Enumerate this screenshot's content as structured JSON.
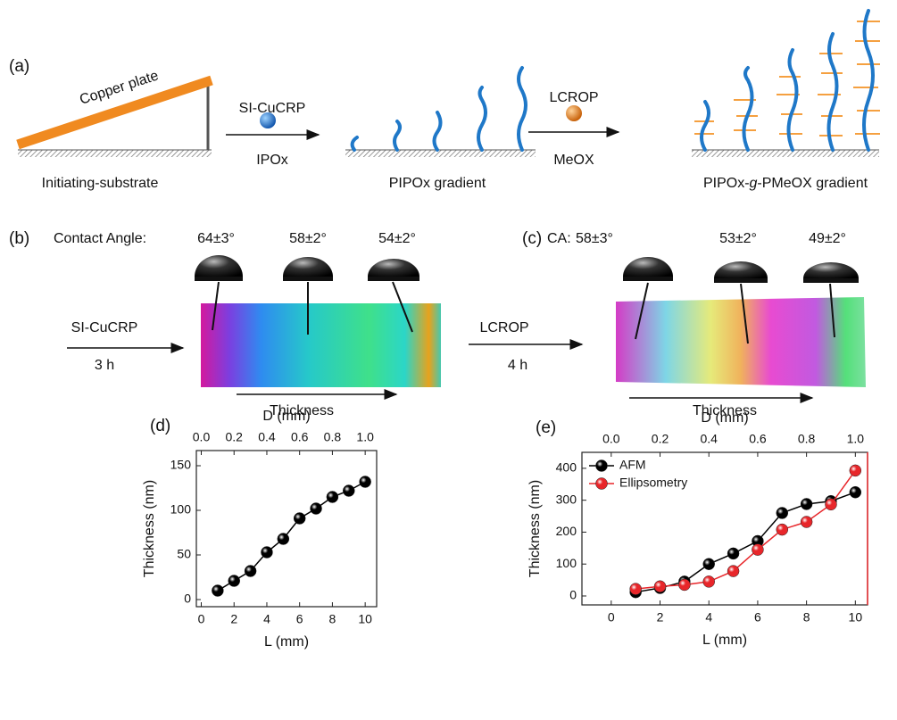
{
  "panel_a": {
    "label": "(a)",
    "plate": "Copper plate",
    "step1": {
      "reagent": "SI-CuCRP",
      "monomer": "IPOx"
    },
    "step2": {
      "reagent": "LCROP",
      "monomer": "MeOX"
    },
    "caption1": "Initiating-substrate",
    "caption2": "PIPOx gradient",
    "caption3": {
      "pre": "PIPOx-",
      "italic": "g",
      "post": "-PMeOX gradient"
    }
  },
  "panel_b": {
    "label": "(b)",
    "ca_label": "Contact Angle:",
    "angles": [
      "64±3°",
      "58±2°",
      "54±2°"
    ],
    "step": "SI-CuCRP",
    "time": "3 h",
    "axis": "Thickness"
  },
  "panel_c": {
    "label": "(c)",
    "ca_label": "CA:",
    "angles": [
      "58±3°",
      "53±2°",
      "49±2°"
    ],
    "step": "LCROP",
    "time": "4 h",
    "axis": "Thickness"
  },
  "chart_data": [
    {
      "type": "line",
      "label": "(d)",
      "xlabel": "L (mm)",
      "x2label": "D (mm)",
      "ylabel": "Thickness (nm)",
      "x": [
        1,
        2,
        3,
        4,
        5,
        6,
        7,
        8,
        9,
        10
      ],
      "series": [
        {
          "color": "#000000",
          "values": [
            10,
            21,
            32,
            53,
            68,
            91,
            102,
            115,
            122,
            132
          ]
        }
      ],
      "xlim": [
        -0.3,
        10.7
      ],
      "xticks": [
        0,
        2,
        4,
        6,
        8,
        10
      ],
      "x2lim": [
        -0.03,
        1.07
      ],
      "x2ticks": [
        {
          "value": 0,
          "label": "0.0"
        },
        0.2,
        0.4,
        0.6,
        0.8,
        {
          "value": 1,
          "label": "1.0"
        }
      ],
      "ylim": [
        -8,
        167
      ],
      "yticks": [
        0,
        50,
        100,
        150
      ]
    },
    {
      "type": "line",
      "label": "(e)",
      "xlabel": "L (mm)",
      "x2label": "D (mm)",
      "ylabel": "Thickness (nm)",
      "x": [
        1,
        2,
        3,
        4,
        5,
        6,
        7,
        8,
        9,
        10
      ],
      "series": [
        {
          "name": "AFM",
          "color": "#000000",
          "values": [
            12,
            25,
            45,
            100,
            133,
            172,
            260,
            288,
            297,
            325
          ]
        },
        {
          "name": "Ellipsometry",
          "color": "#e8262a",
          "values": [
            22,
            30,
            35,
            45,
            78,
            145,
            208,
            232,
            287,
            393
          ]
        }
      ],
      "xlim": [
        -1.2,
        10.5
      ],
      "xticks": [
        0,
        2,
        4,
        6,
        8,
        10
      ],
      "x2lim": [
        -0.12,
        1.05
      ],
      "x2ticks": [
        {
          "value": 0,
          "label": "0.0"
        },
        0.2,
        0.4,
        0.6,
        0.8,
        {
          "value": 1,
          "label": "1.0"
        }
      ],
      "ylim": [
        -28,
        450
      ],
      "yticks": [
        0,
        100,
        200,
        300,
        400
      ],
      "legend": "upper left",
      "right_axis_color": "#e8262a"
    }
  ]
}
